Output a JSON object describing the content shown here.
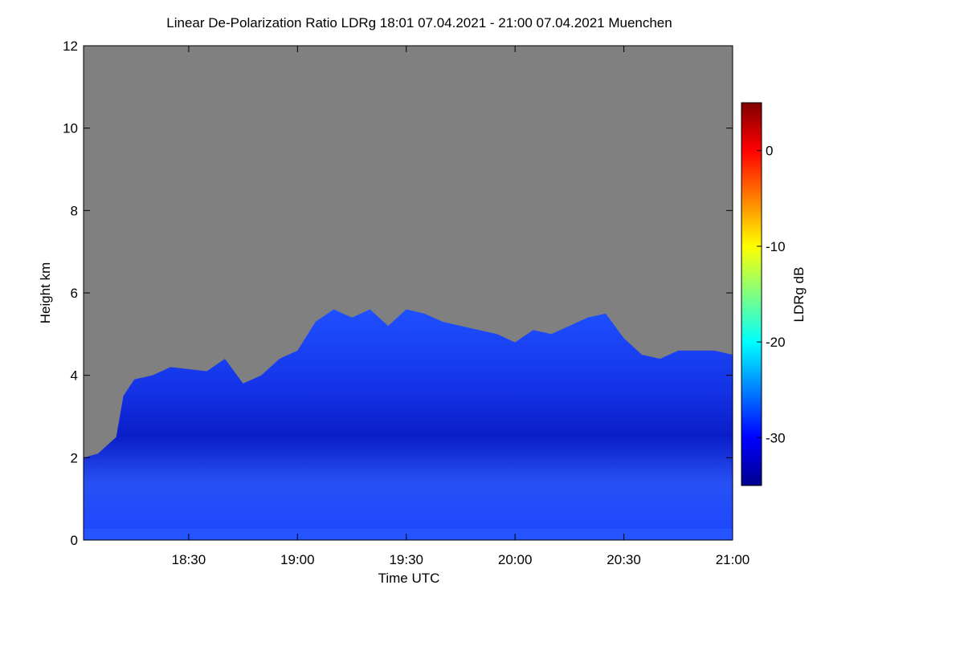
{
  "chart_data": {
    "type": "heatmap",
    "title": "Linear De-Polarization Ratio LDRg   18:01 07.04.2021 - 21:00 07.04.2021 Muenchen",
    "x_label": "Time UTC",
    "y_label": "Height km",
    "colorbar_label": "LDRg dB",
    "xlim": [
      18.0167,
      21.0
    ],
    "ylim": [
      0,
      12
    ],
    "xticks": [
      {
        "value": 18.5,
        "label": "18:30"
      },
      {
        "value": 19.0,
        "label": "19:00"
      },
      {
        "value": 19.5,
        "label": "19:30"
      },
      {
        "value": 20.0,
        "label": "20:00"
      },
      {
        "value": 20.5,
        "label": "20:30"
      },
      {
        "value": 21.0,
        "label": "21:00"
      }
    ],
    "yticks": [
      0,
      2,
      4,
      6,
      8,
      10,
      12
    ],
    "zlim": [
      -35,
      5
    ],
    "zticks": [
      0,
      -10,
      -20,
      -30
    ],
    "colorscale": [
      "#00008f",
      "#0000ff",
      "#0080ff",
      "#00ffff",
      "#80ff80",
      "#ffff00",
      "#ff8000",
      "#ff0000",
      "#800000"
    ],
    "background_color": "#808080",
    "x": [
      18.0167,
      18.0833,
      18.1667,
      18.2,
      18.25,
      18.3333,
      18.4167,
      18.5833,
      18.6667,
      18.75,
      18.8333,
      18.9167,
      19.0,
      19.0833,
      19.1667,
      19.25,
      19.3333,
      19.4167,
      19.5,
      19.5833,
      19.6667,
      19.75,
      19.8333,
      19.9167,
      20.0,
      20.0833,
      20.1667,
      20.25,
      20.3333,
      20.4167,
      20.5,
      20.5833,
      20.6667,
      20.75,
      20.8333,
      20.9167,
      21.0
    ],
    "values": [
      2.0,
      2.1,
      2.5,
      3.5,
      3.9,
      4.0,
      4.2,
      4.1,
      4.4,
      3.8,
      4.0,
      4.4,
      4.6,
      5.3,
      5.6,
      5.4,
      5.6,
      5.2,
      5.6,
      5.5,
      5.3,
      5.2,
      5.1,
      5.0,
      4.8,
      5.1,
      5.0,
      5.2,
      5.4,
      5.5,
      4.9,
      4.5,
      4.4,
      4.6,
      4.6,
      4.6,
      4.5
    ],
    "color": "#1e3cf0"
  }
}
